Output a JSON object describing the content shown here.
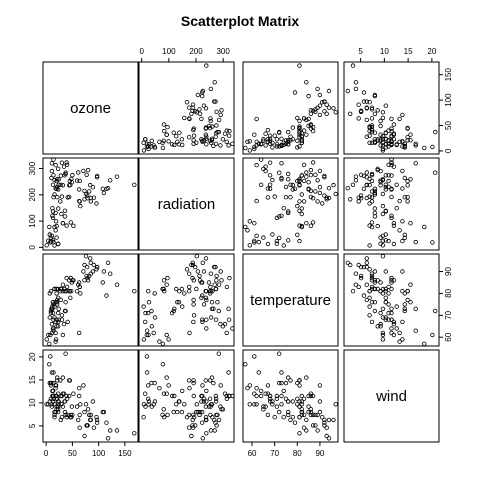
{
  "chart_data": {
    "type": "scatter",
    "title": "Scatterplot Matrix",
    "variables": [
      {
        "key": "ozone",
        "label": "ozone",
        "range": [
          -6,
          175
        ],
        "ticks": [
          0,
          50,
          100,
          150
        ]
      },
      {
        "key": "radiation",
        "label": "radiation",
        "range": [
          -10,
          340
        ],
        "ticks": [
          0,
          100,
          200,
          300
        ]
      },
      {
        "key": "temperature",
        "label": "temperature",
        "range": [
          56,
          98
        ],
        "ticks": [
          60,
          70,
          80,
          90
        ]
      },
      {
        "key": "wind",
        "label": "wind",
        "range": [
          1.5,
          21.5
        ],
        "ticks": [
          5,
          10,
          15,
          20
        ]
      }
    ],
    "top_axis_panels": [
      1,
      3
    ],
    "bottom_axis_panels": [
      0,
      2
    ],
    "left_axis_panels": [
      1,
      3
    ],
    "right_axis_panels": [
      0,
      2
    ],
    "grid": false,
    "observations": [
      [
        41,
        190,
        67,
        7.4
      ],
      [
        36,
        118,
        72,
        8.0
      ],
      [
        12,
        149,
        74,
        12.6
      ],
      [
        18,
        313,
        62,
        11.5
      ],
      [
        23,
        299,
        65,
        8.6
      ],
      [
        19,
        99,
        59,
        13.8
      ],
      [
        8,
        19,
        61,
        20.1
      ],
      [
        16,
        256,
        69,
        9.7
      ],
      [
        11,
        290,
        66,
        9.2
      ],
      [
        14,
        274,
        68,
        10.9
      ],
      [
        18,
        65,
        58,
        13.2
      ],
      [
        14,
        334,
        64,
        11.5
      ],
      [
        34,
        307,
        66,
        12.0
      ],
      [
        6,
        78,
        57,
        18.4
      ],
      [
        30,
        322,
        68,
        11.5
      ],
      [
        11,
        44,
        62,
        9.7
      ],
      [
        1,
        8,
        59,
        9.7
      ],
      [
        11,
        320,
        73,
        16.6
      ],
      [
        4,
        25,
        61,
        9.7
      ],
      [
        32,
        92,
        61,
        12.0
      ],
      [
        23,
        13,
        67,
        12.0
      ],
      [
        45,
        252,
        81,
        14.9
      ],
      [
        115,
        223,
        79,
        5.7
      ],
      [
        37,
        279,
        76,
        7.4
      ],
      [
        29,
        127,
        82,
        9.7
      ],
      [
        71,
        291,
        90,
        13.8
      ],
      [
        39,
        323,
        87,
        11.5
      ],
      [
        23,
        148,
        82,
        8.0
      ],
      [
        21,
        191,
        77,
        14.9
      ],
      [
        37,
        284,
        72,
        20.7
      ],
      [
        20,
        37,
        65,
        9.2
      ],
      [
        12,
        120,
        73,
        11.5
      ],
      [
        13,
        137,
        76,
        10.3
      ],
      [
        135,
        269,
        84,
        4.0
      ],
      [
        49,
        248,
        85,
        9.2
      ],
      [
        32,
        236,
        81,
        9.2
      ],
      [
        64,
        175,
        83,
        4.6
      ],
      [
        40,
        314,
        83,
        10.9
      ],
      [
        77,
        276,
        88,
        5.1
      ],
      [
        97,
        267,
        92,
        6.3
      ],
      [
        97,
        272,
        92,
        5.7
      ],
      [
        85,
        175,
        89,
        7.4
      ],
      [
        10,
        264,
        73,
        14.3
      ],
      [
        27,
        175,
        81,
        14.9
      ],
      [
        7,
        48,
        80,
        14.3
      ],
      [
        48,
        260,
        81,
        6.9
      ],
      [
        35,
        274,
        82,
        10.3
      ],
      [
        61,
        285,
        84,
        6.3
      ],
      [
        79,
        187,
        87,
        5.1
      ],
      [
        63,
        220,
        85,
        11.5
      ],
      [
        16,
        7,
        74,
        6.9
      ],
      [
        80,
        294,
        86,
        8.6
      ],
      [
        108,
        223,
        85,
        8.0
      ],
      [
        20,
        81,
        82,
        8.6
      ],
      [
        52,
        82,
        86,
        12.0
      ],
      [
        82,
        213,
        88,
        7.4
      ],
      [
        50,
        275,
        86,
        7.4
      ],
      [
        64,
        253,
        83,
        7.4
      ],
      [
        59,
        254,
        81,
        9.2
      ],
      [
        39,
        83,
        81,
        6.9
      ],
      [
        9,
        24,
        81,
        13.8
      ],
      [
        16,
        77,
        82,
        7.4
      ],
      [
        122,
        255,
        89,
        4.0
      ],
      [
        89,
        229,
        90,
        10.3
      ],
      [
        110,
        207,
        90,
        8.0
      ],
      [
        44,
        192,
        86,
        11.5
      ],
      [
        28,
        273,
        82,
        11.5
      ],
      [
        65,
        157,
        80,
        9.7
      ],
      [
        168,
        238,
        81,
        3.4
      ],
      [
        73,
        215,
        86,
        8.0
      ],
      [
        76,
        203,
        97,
        9.7
      ],
      [
        118,
        225,
        94,
        2.3
      ],
      [
        84,
        237,
        96,
        6.3
      ],
      [
        85,
        188,
        94,
        6.3
      ],
      [
        96,
        167,
        91,
        6.9
      ],
      [
        78,
        197,
        92,
        5.1
      ],
      [
        73,
        183,
        93,
        2.8
      ],
      [
        91,
        189,
        93,
        4.6
      ],
      [
        47,
        95,
        87,
        7.4
      ],
      [
        32,
        92,
        84,
        15.5
      ],
      [
        20,
        252,
        80,
        10.9
      ],
      [
        23,
        220,
        78,
        10.3
      ],
      [
        21,
        230,
        75,
        10.9
      ],
      [
        24,
        259,
        73,
        9.7
      ],
      [
        44,
        236,
        81,
        14.9
      ],
      [
        21,
        259,
        76,
        15.5
      ],
      [
        28,
        238,
        77,
        6.3
      ],
      [
        9,
        24,
        71,
        10.9
      ],
      [
        13,
        112,
        71,
        11.5
      ],
      [
        46,
        237,
        78,
        6.9
      ],
      [
        18,
        224,
        67,
        13.8
      ],
      [
        13,
        27,
        76,
        10.3
      ],
      [
        24,
        238,
        68,
        10.3
      ],
      [
        16,
        201,
        82,
        8.0
      ],
      [
        13,
        238,
        64,
        12.6
      ],
      [
        23,
        14,
        71,
        9.2
      ],
      [
        36,
        139,
        81,
        10.3
      ],
      [
        7,
        49,
        69,
        10.3
      ],
      [
        14,
        20,
        63,
        16.6
      ],
      [
        30,
        193,
        70,
        6.9
      ],
      [
        14,
        191,
        75,
        14.3
      ],
      [
        18,
        131,
        76,
        8.0
      ],
      [
        20,
        223,
        68,
        11.5
      ],
      [
        9,
        36,
        72,
        14.3
      ],
      [
        63,
        176,
        62,
        13.2
      ]
    ]
  }
}
